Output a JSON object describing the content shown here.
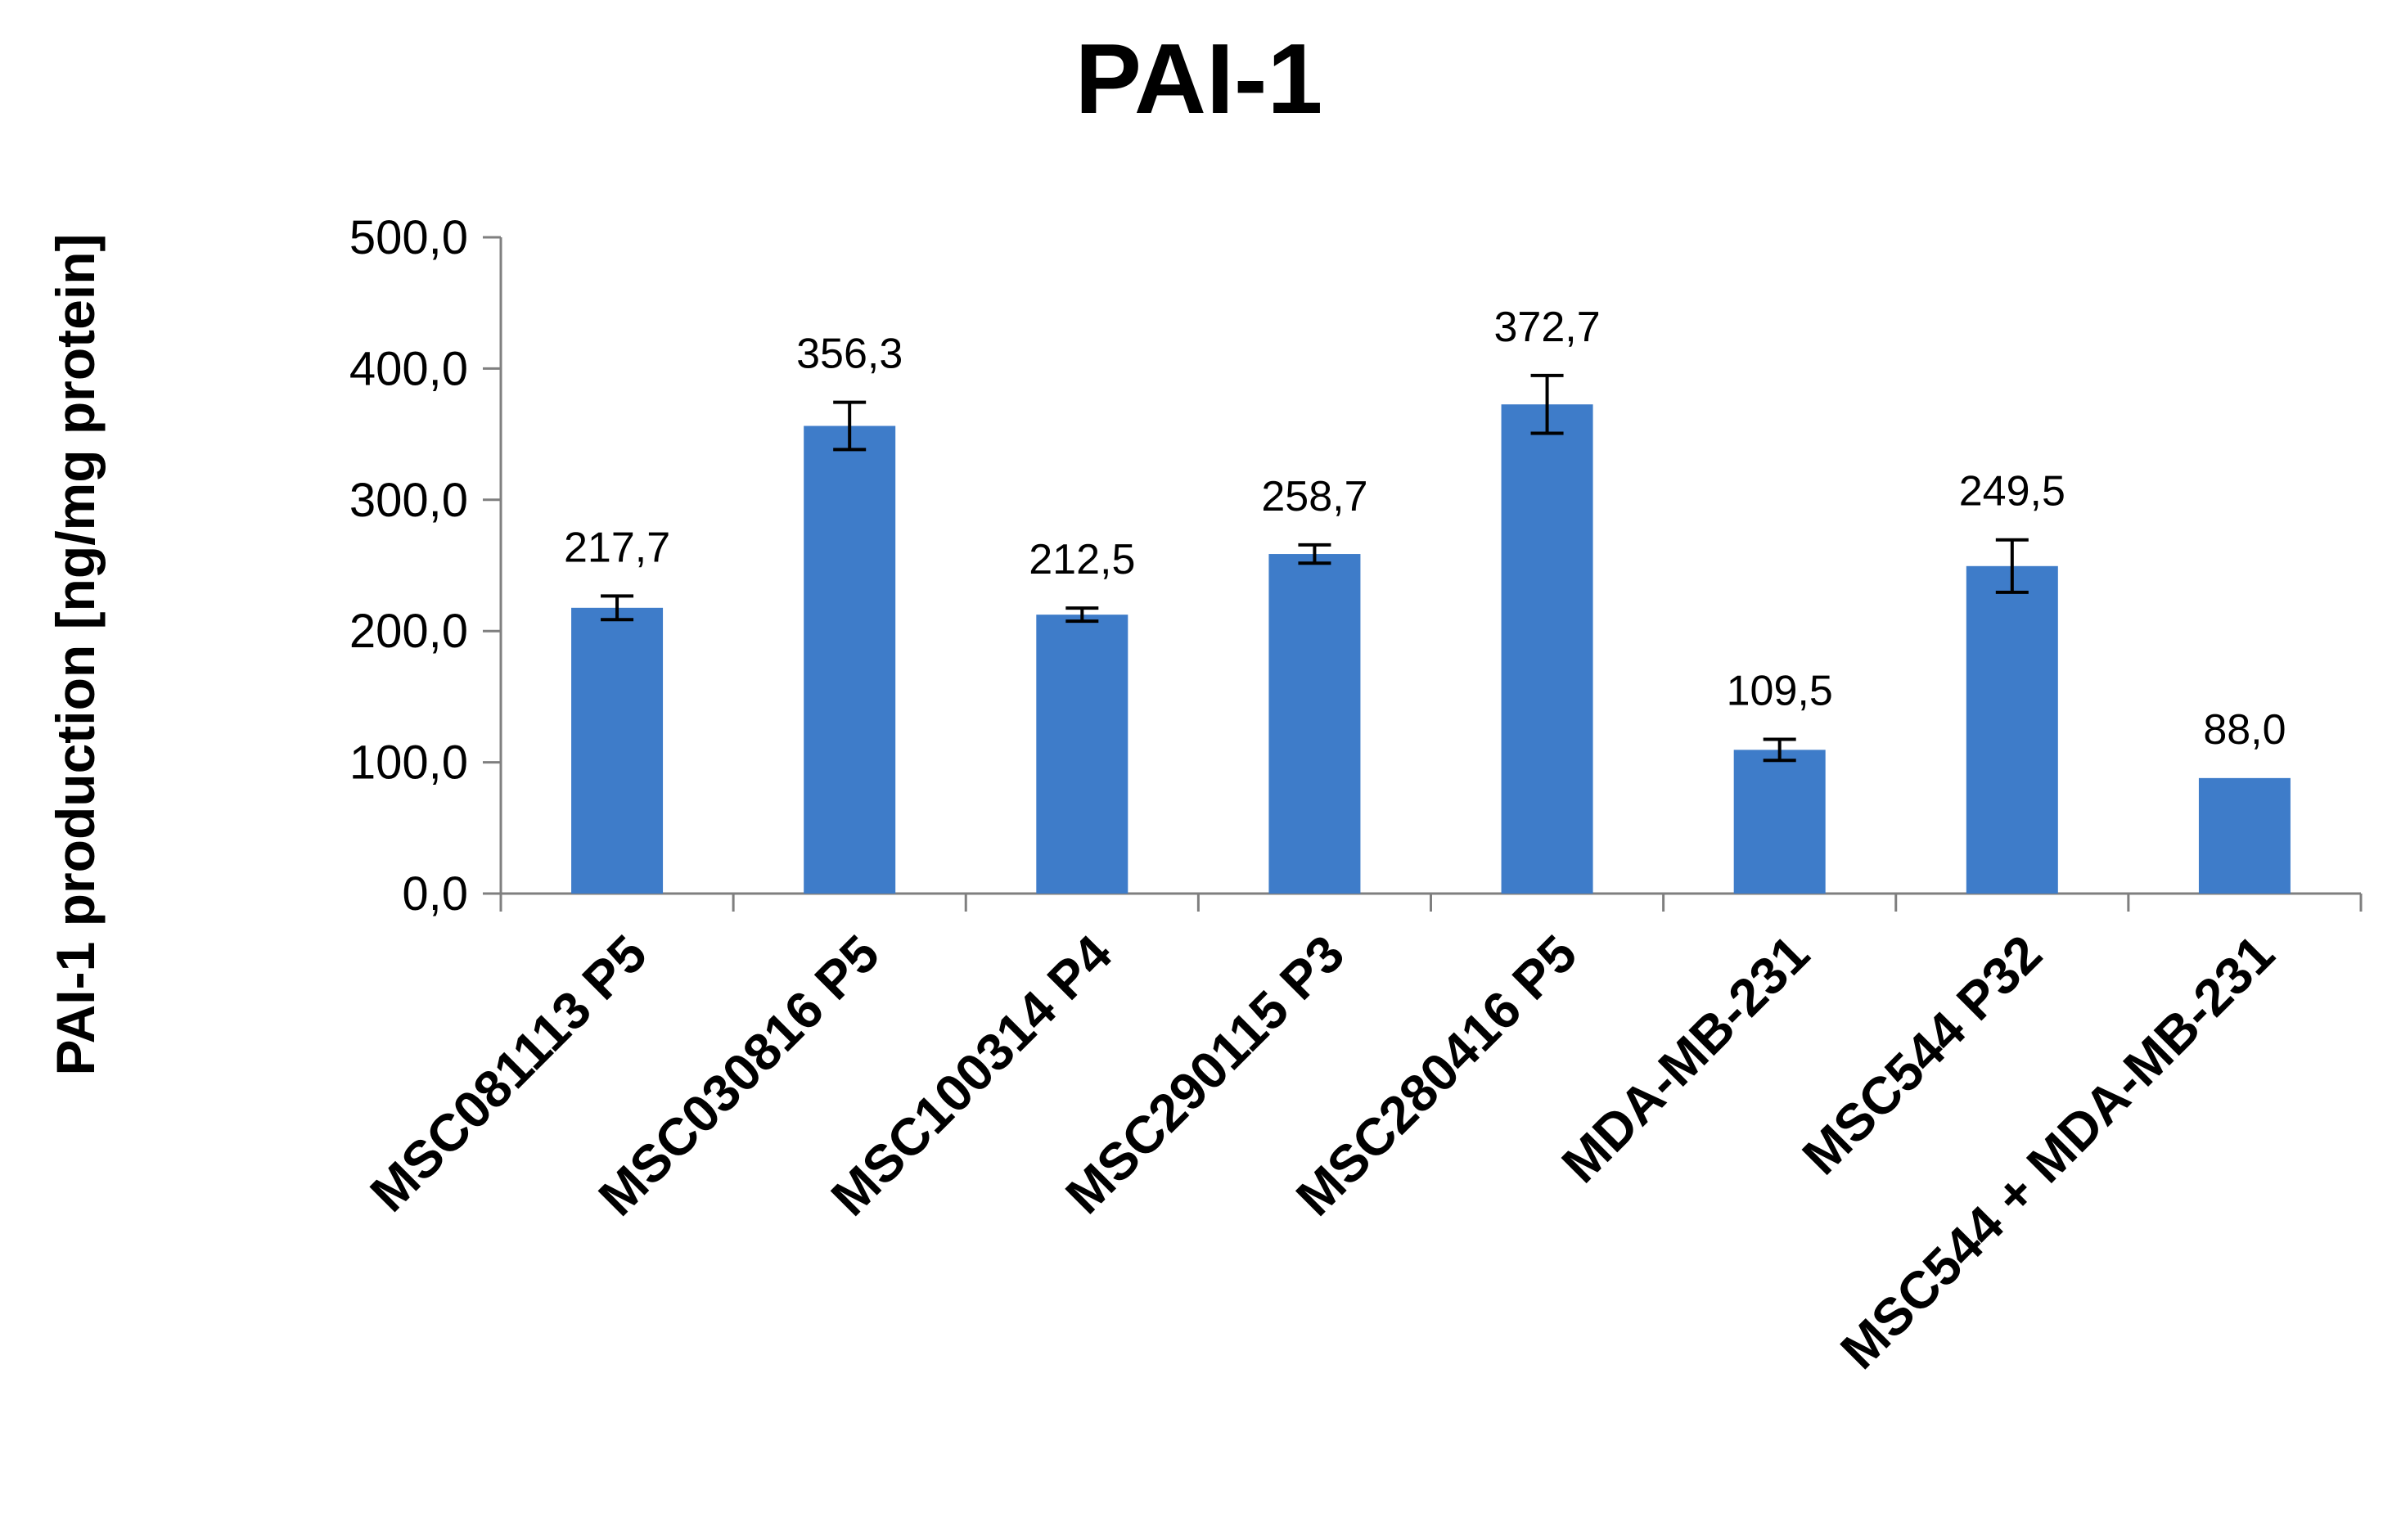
{
  "chart_data": {
    "type": "bar",
    "title": "PAI-1",
    "xlabel": "",
    "ylabel": "PAI-1 production [ng/mg protein]",
    "ylim": [
      0,
      500
    ],
    "yticks": [
      0,
      100,
      200,
      300,
      400,
      500
    ],
    "ytick_labels": [
      "0,0",
      "100,0",
      "200,0",
      "300,0",
      "400,0",
      "500,0"
    ],
    "categories": [
      "MSC081113 P5",
      "MSC030816 P5",
      "MSC100314 P4",
      "MSC290115 P3",
      "MSC280416 P5",
      "MDA-MB-231",
      "MSC544 P32",
      "MSC544 + MDA-MB-231"
    ],
    "values": [
      217.7,
      356.3,
      212.5,
      258.7,
      372.7,
      109.5,
      249.5,
      88.0
    ],
    "errors": [
      9,
      18,
      5,
      7,
      22,
      8,
      20,
      0
    ],
    "value_labels": [
      "217,7",
      "356,3",
      "212,5",
      "258,7",
      "372,7",
      "109,5",
      "249,5",
      "88,0"
    ],
    "bar_color": "#3e7cc9",
    "error_bars": true,
    "grid": false,
    "legend": false
  }
}
